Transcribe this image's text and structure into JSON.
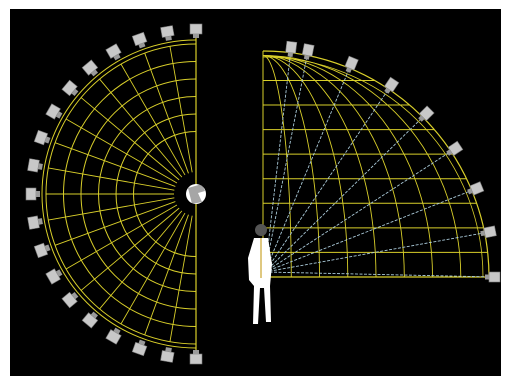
{
  "colors": {
    "background": "#000000",
    "frame_border": "#ffffff",
    "grid_line": "#d9cf2a",
    "ray_line": "#a9c9d8",
    "speaker_body": "#c8c8c8",
    "listener": "#ffffff"
  },
  "left_diagram": {
    "icon": "listener-top-view-icon",
    "speaker_count": 19,
    "speaker_elevation_span_deg": [
      -90,
      90
    ]
  },
  "right_diagram": {
    "icon": "listener-side-view-icon",
    "speaker_count": 9,
    "speaker_elevation_span_deg": [
      0,
      90
    ]
  }
}
